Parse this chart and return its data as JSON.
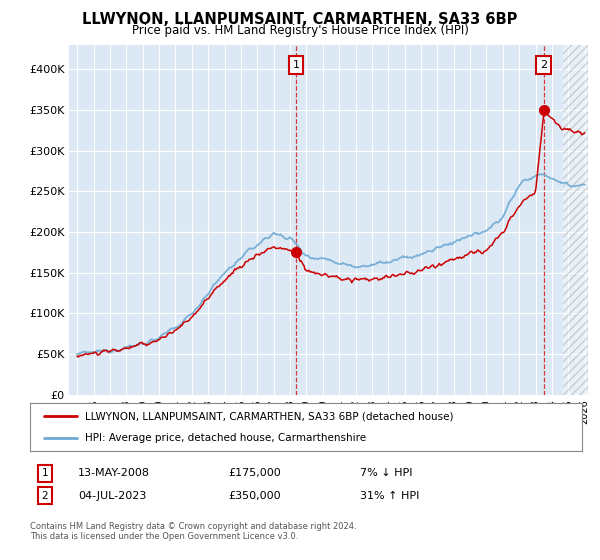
{
  "title": "LLWYNON, LLANPUMSAINT, CARMARTHEN, SA33 6BP",
  "subtitle": "Price paid vs. HM Land Registry's House Price Index (HPI)",
  "legend_line1": "LLWYNON, LLANPUMSAINT, CARMARTHEN, SA33 6BP (detached house)",
  "legend_line2": "HPI: Average price, detached house, Carmarthenshire",
  "annotation1_date": "13-MAY-2008",
  "annotation1_price": "£175,000",
  "annotation1_hpi": "7% ↓ HPI",
  "annotation1_year": 2008.37,
  "annotation1_value": 175000,
  "annotation2_date": "04-JUL-2023",
  "annotation2_price": "£350,000",
  "annotation2_hpi": "31% ↑ HPI",
  "annotation2_year": 2023.5,
  "annotation2_value": 350000,
  "hpi_color": "#6faad4",
  "price_color": "#cc0000",
  "plot_bg": "#dce9f5",
  "grid_color": "#ffffff",
  "yticks": [
    0,
    50000,
    100000,
    150000,
    200000,
    250000,
    300000,
    350000,
    400000
  ],
  "ytick_labels": [
    "£0",
    "£50K",
    "£100K",
    "£150K",
    "£200K",
    "£250K",
    "£300K",
    "£350K",
    "£400K"
  ],
  "xlim": [
    1994.5,
    2026.2
  ],
  "ylim": [
    0,
    430000
  ],
  "hatch_start": 2024.7,
  "footer": "Contains HM Land Registry data © Crown copyright and database right 2024.\nThis data is licensed under the Open Government Licence v3.0."
}
